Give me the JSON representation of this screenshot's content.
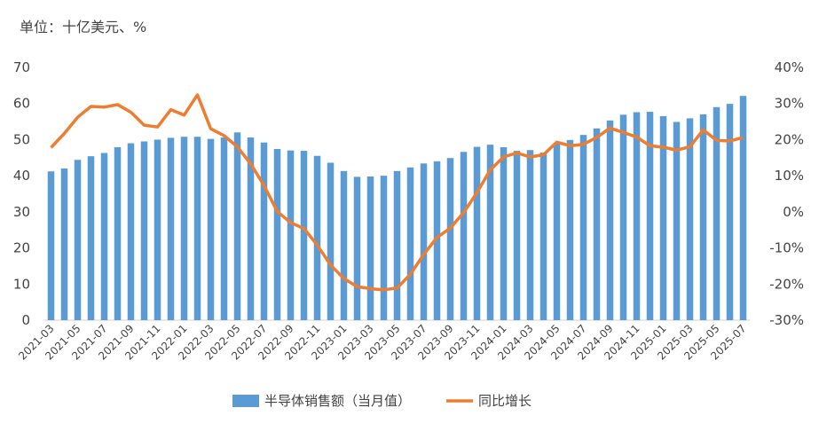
{
  "chart_data": {
    "type": "bar-line",
    "title": "单位：十亿美元、%",
    "categories": [
      "2021-03",
      null,
      "2021-05",
      null,
      "2021-07",
      null,
      "2021-09",
      null,
      "2021-11",
      null,
      "2022-01",
      null,
      "2022-03",
      null,
      "2022-05",
      null,
      "2022-07",
      null,
      "2022-09",
      null,
      "2022-11",
      null,
      "2023-01",
      null,
      "2023-03",
      null,
      "2023-05",
      null,
      "2023-07",
      null,
      "2023-09",
      null,
      "2023-11",
      null,
      "2024-01",
      null,
      "2024-03",
      null,
      "2024-05",
      null,
      "2024-07",
      null,
      "2024-09",
      null,
      "2024-11",
      null,
      "2025-01",
      null,
      "2025-03",
      null,
      "2025-05",
      null,
      "2025-07"
    ],
    "series": [
      {
        "name": "半导体销售额（当月值）",
        "color": "#5b9bd5",
        "type": "bar",
        "axis": "y",
        "values": [
          41.2,
          42.0,
          44.4,
          45.4,
          46.3,
          47.9,
          49.0,
          49.5,
          50.0,
          50.5,
          50.8,
          50.8,
          50.2,
          50.6,
          52.0,
          50.6,
          49.2,
          47.4,
          47.0,
          46.9,
          45.5,
          43.6,
          41.3,
          39.7,
          39.8,
          40.0,
          41.3,
          42.3,
          43.4,
          44.0,
          44.9,
          46.6,
          48.0,
          48.6,
          47.9,
          46.9,
          47.1,
          46.4,
          49.1,
          49.9,
          51.3,
          53.1,
          55.3,
          56.9,
          57.6,
          57.7,
          56.5,
          54.9,
          55.9,
          57.0,
          59.0,
          59.9,
          62.1
        ]
      },
      {
        "name": "同比增长",
        "color": "#ed7d31",
        "type": "line",
        "axis": "y2",
        "values": [
          17.8,
          21.7,
          26.2,
          29.2,
          29.0,
          29.7,
          27.6,
          24.0,
          23.5,
          28.3,
          26.8,
          32.4,
          23.0,
          21.1,
          18.0,
          13.3,
          7.3,
          0.1,
          -3.0,
          -4.6,
          -9.2,
          -14.7,
          -18.5,
          -20.7,
          -21.3,
          -21.6,
          -21.1,
          -17.3,
          -11.8,
          -7.1,
          -4.5,
          -0.2,
          5.3,
          11.6,
          15.2,
          16.3,
          15.2,
          15.8,
          19.3,
          18.3,
          18.7,
          20.6,
          23.2,
          22.0,
          20.7,
          18.3,
          17.9,
          17.1,
          18.0,
          22.7,
          19.8,
          19.6,
          20.6
        ]
      }
    ],
    "ylim": [
      0,
      70
    ],
    "yticks": [
      0,
      10,
      20,
      30,
      40,
      50,
      60,
      70
    ],
    "y2lim": [
      -30,
      40
    ],
    "y2ticks": [
      {
        "value": -30,
        "label": "-30%"
      },
      {
        "value": -20,
        "label": "-20%"
      },
      {
        "value": -10,
        "label": "-10%"
      },
      {
        "value": 0,
        "label": "0%"
      },
      {
        "value": 10,
        "label": "10%"
      },
      {
        "value": 20,
        "label": "20%"
      },
      {
        "value": 30,
        "label": "30%"
      },
      {
        "value": 40,
        "label": "40%"
      }
    ],
    "grid": false,
    "legend": "bottom"
  }
}
